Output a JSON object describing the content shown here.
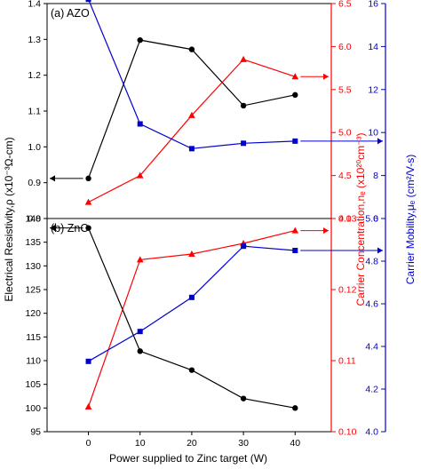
{
  "chart_data": {
    "type": "line",
    "xlabel": "Power supplied to Zinc target (W)",
    "x_ticks": [
      "0",
      "10",
      "20",
      "30",
      "40"
    ],
    "colors": {
      "resistivity": "#000000",
      "concentration": "#ff0000",
      "mobility": "#0000cc"
    },
    "panels": [
      {
        "label": "(a) AZO",
        "x": [
          0,
          10,
          20,
          30,
          40
        ],
        "left_axis": {
          "ylim": [
            0.8,
            1.4
          ],
          "ticks": [
            "0.8",
            "0.9",
            "1.0",
            "1.1",
            "1.2",
            "1.3",
            "1.4"
          ]
        },
        "right_axis": {
          "ylim": [
            4.0,
            6.5
          ],
          "ticks": [
            "4.0",
            "4.5",
            "5.0",
            "5.5",
            "6.0",
            "6.5"
          ]
        },
        "right_axis2": {
          "ylim": [
            6,
            16
          ],
          "ticks": [
            "6",
            "8",
            "10",
            "12",
            "14",
            "16"
          ]
        },
        "series": [
          {
            "key": "resistivity",
            "axis": "left",
            "marker": "circle",
            "values": [
              0.912,
              1.298,
              1.272,
              1.115,
              1.145
            ]
          },
          {
            "key": "concentration",
            "axis": "right",
            "marker": "triangle",
            "values": [
              4.19,
              4.5,
              5.2,
              5.85,
              5.65
            ]
          },
          {
            "key": "mobility",
            "axis": "right2",
            "marker": "square",
            "values": [
              16.2,
              10.4,
              9.25,
              9.5,
              9.6
            ]
          }
        ]
      },
      {
        "label": "(b) ZnO",
        "x": [
          0,
          10,
          20,
          30,
          40
        ],
        "left_axis": {
          "ylim": [
            95,
            140
          ],
          "ticks": [
            "95",
            "100",
            "105",
            "110",
            "115",
            "120",
            "125",
            "130",
            "135",
            "140"
          ]
        },
        "right_axis": {
          "ylim": [
            0.1,
            0.13
          ],
          "ticks": [
            "0.10",
            "0.11",
            "0.12",
            "0.13"
          ]
        },
        "right_axis2": {
          "ylim": [
            4.0,
            5.0
          ],
          "ticks": [
            "4.0",
            "4.2",
            "4.4",
            "4.6",
            "4.8",
            "5.0"
          ]
        },
        "series": [
          {
            "key": "resistivity",
            "axis": "left",
            "marker": "circle",
            "values": [
              138,
              112,
              108,
              102,
              100
            ]
          },
          {
            "key": "concentration",
            "axis": "right",
            "marker": "triangle",
            "values": [
              0.1035,
              0.1242,
              0.125,
              0.1265,
              0.1283
            ]
          },
          {
            "key": "mobility",
            "axis": "right2",
            "marker": "square",
            "values": [
              4.33,
              4.47,
              4.63,
              4.87,
              4.85
            ]
          }
        ]
      }
    ],
    "ylabel_left": "Electrical Resistivity,ρ (x10⁻³Ω-cm)",
    "ylabel_right": "Carrier Concentration,nₑ (x10²⁰cm⁻³)",
    "ylabel_right2": "Carrier Mobility,μₑ (cm²/V-s)"
  }
}
